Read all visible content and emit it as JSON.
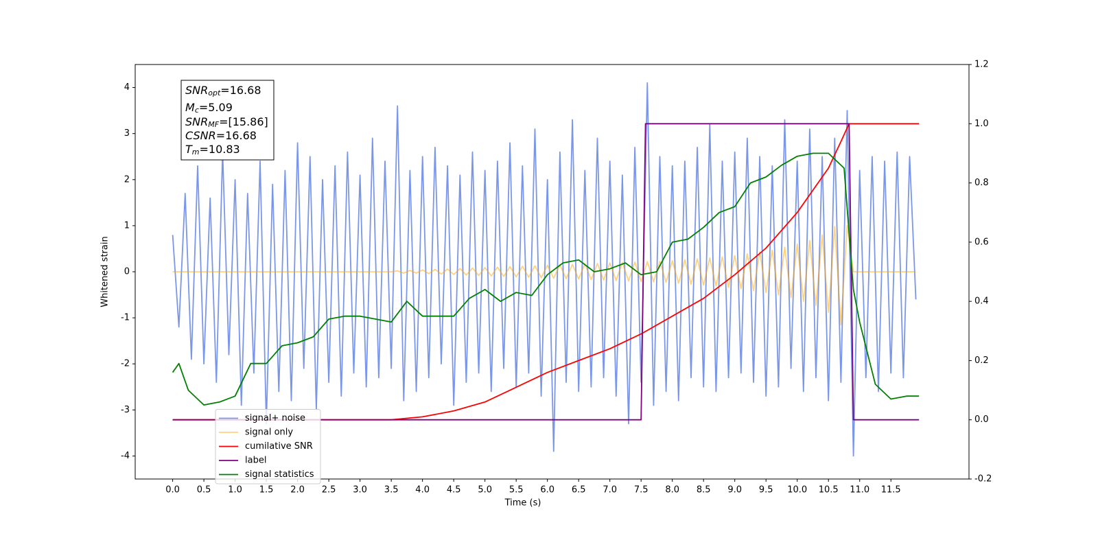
{
  "chart_data": {
    "type": "line",
    "ylabel": "Whitened strain",
    "xlabel": "Time (s)",
    "xlim": [
      -0.6,
      12.75
    ],
    "ylim": [
      -4.5,
      4.5
    ],
    "y2lim": [
      -0.2,
      1.2
    ],
    "xticks": [
      {
        "value": 0,
        "label": "0.0"
      },
      0.5,
      {
        "value": 1,
        "label": "1.0"
      },
      1.5,
      {
        "value": 2,
        "label": "2.0"
      },
      2.5,
      {
        "value": 3,
        "label": "3.0"
      },
      3.5,
      {
        "value": 4,
        "label": "4.0"
      },
      4.5,
      {
        "value": 5,
        "label": "5.0"
      },
      5.5,
      {
        "value": 6,
        "label": "6.0"
      },
      6.5,
      {
        "value": 7,
        "label": "7.0"
      },
      7.5,
      {
        "value": 8,
        "label": "8.0"
      },
      8.5,
      {
        "value": 9,
        "label": "9.0"
      },
      9.5,
      {
        "value": 10,
        "label": "10.0"
      },
      10.5,
      {
        "value": 11,
        "label": "11.0"
      },
      11.5
    ],
    "yticks": [
      -4,
      -3,
      -2,
      -1,
      0,
      1,
      2,
      3,
      4
    ],
    "y2ticks": [
      -0.2,
      {
        "value": 0,
        "label": "0.0"
      },
      0.2,
      0.4,
      0.6,
      0.8,
      {
        "value": 1,
        "label": "1.0"
      },
      1.2
    ],
    "legend": "lower left",
    "annotation": [
      {
        "base": "SNR",
        "sub": "opt",
        "rest": "=16.68"
      },
      {
        "base": "M",
        "sub": "c",
        "rest": "=5.09"
      },
      {
        "base": "SNR",
        "sub": "MF",
        "rest": "=[15.86]"
      },
      {
        "base": "CSNR",
        "sub": "",
        "rest": "=16.68"
      },
      {
        "base": "T",
        "sub": "m",
        "rest": "=10.83"
      }
    ],
    "series": [
      {
        "name": "signal+ noise",
        "color": "#4169e1",
        "alpha": 0.7,
        "step": 0.1,
        "values": [
          0.8,
          -1.2,
          1.7,
          -1.9,
          2.3,
          -2.0,
          1.6,
          -2.4,
          2.6,
          -1.8,
          2.0,
          -2.9,
          1.7,
          -2.2,
          2.4,
          -3.3,
          1.9,
          -2.6,
          2.2,
          -2.8,
          2.8,
          -2.1,
          2.5,
          -3.0,
          2.0,
          -2.4,
          2.3,
          -2.7,
          2.6,
          -2.2,
          2.1,
          -2.5,
          2.9,
          -2.3,
          2.4,
          -2.1,
          3.6,
          -2.8,
          2.2,
          -2.6,
          2.5,
          -2.3,
          2.7,
          -2.0,
          2.3,
          -2.9,
          2.1,
          -2.4,
          2.6,
          -2.2,
          2.2,
          -2.6,
          2.4,
          -2.1,
          2.8,
          -2.5,
          2.3,
          -2.2,
          3.1,
          -2.7,
          2.0,
          -3.9,
          2.6,
          -2.4,
          3.3,
          -2.6,
          2.2,
          -2.5,
          2.9,
          -2.3,
          2.4,
          -2.7,
          2.1,
          -3.3,
          2.7,
          -2.4,
          4.1,
          -2.9,
          2.5,
          -2.6,
          2.3,
          -2.8,
          2.4,
          -2.3,
          2.7,
          -2.5,
          3.2,
          -2.6,
          2.4,
          -2.3,
          2.6,
          -2.2,
          2.9,
          -2.4,
          2.5,
          -2.7,
          2.3,
          -2.5,
          3.3,
          -2.1,
          2.4,
          -2.6,
          3.1,
          -2.3,
          2.5,
          -2.8,
          2.9,
          -2.4,
          3.5,
          -4.0,
          2.2,
          -2.3,
          2.5,
          -2.6,
          2.4,
          -2.2,
          2.6,
          -2.3,
          2.5,
          -0.6
        ]
      },
      {
        "name": "signal only",
        "color": "#ffa500",
        "alpha": 0.5,
        "step": 0.1,
        "values": [
          0,
          0,
          0,
          0,
          0,
          0,
          0,
          0,
          0,
          0,
          0,
          0,
          0,
          0,
          0,
          0,
          0,
          0,
          0,
          0,
          0,
          0,
          0,
          0,
          0,
          0,
          0,
          0,
          0,
          0,
          0,
          0,
          0,
          0,
          0,
          0,
          0.02,
          -0.03,
          0.03,
          -0.03,
          0.04,
          -0.04,
          0.05,
          -0.05,
          0.06,
          -0.06,
          0.07,
          -0.07,
          0.08,
          -0.08,
          0.09,
          -0.09,
          0.1,
          -0.1,
          0.11,
          -0.11,
          0.12,
          -0.12,
          0.13,
          -0.13,
          0.14,
          -0.14,
          0.15,
          -0.15,
          0.16,
          -0.16,
          0.17,
          -0.17,
          0.18,
          -0.18,
          0.19,
          -0.19,
          0.2,
          -0.2,
          0.21,
          -0.21,
          0.22,
          -0.22,
          0.23,
          -0.23,
          0.24,
          -0.25,
          0.26,
          -0.27,
          0.28,
          -0.29,
          0.3,
          -0.31,
          0.32,
          -0.34,
          0.35,
          -0.37,
          0.39,
          -0.41,
          0.43,
          -0.45,
          0.47,
          -0.5,
          0.53,
          -0.56,
          0.6,
          -0.64,
          0.68,
          -0.73,
          0.8,
          -0.88,
          0.98,
          -1.15,
          1.0,
          0,
          0,
          0,
          0,
          0,
          0,
          0,
          0,
          0,
          0,
          0
        ]
      },
      {
        "name": "cumilative SNR",
        "color": "#ff0000",
        "alpha": 1,
        "axis": "y2",
        "x": [
          0,
          3.5,
          4.0,
          4.5,
          5.0,
          5.5,
          6.0,
          6.5,
          7.0,
          7.5,
          8.0,
          8.5,
          9.0,
          9.5,
          10.0,
          10.5,
          10.7,
          10.83,
          11.95
        ],
        "values": [
          0,
          0,
          0.01,
          0.03,
          0.06,
          0.11,
          0.16,
          0.2,
          0.24,
          0.29,
          0.35,
          0.41,
          0.49,
          0.58,
          0.7,
          0.85,
          0.94,
          1.0,
          1.0
        ]
      },
      {
        "name": "label",
        "color": "#800080",
        "alpha": 1,
        "axis": "y2",
        "x": [
          0,
          7.5,
          7.57,
          10.83,
          10.9,
          11.95
        ],
        "values": [
          0,
          0,
          1,
          1,
          0,
          0
        ]
      },
      {
        "name": "signal statistics",
        "color": "#008000",
        "alpha": 1,
        "axis": "y2",
        "x": [
          0,
          0.1,
          0.25,
          0.5,
          0.75,
          1.0,
          1.25,
          1.5,
          1.75,
          2.0,
          2.25,
          2.5,
          2.75,
          3.0,
          3.25,
          3.5,
          3.75,
          4.0,
          4.25,
          4.5,
          4.75,
          5.0,
          5.25,
          5.5,
          5.75,
          6.0,
          6.25,
          6.5,
          6.75,
          7.0,
          7.25,
          7.5,
          7.75,
          8.0,
          8.25,
          8.5,
          8.75,
          9.0,
          9.25,
          9.5,
          9.75,
          10.0,
          10.25,
          10.5,
          10.75,
          10.9,
          11.0,
          11.25,
          11.5,
          11.75,
          11.95
        ],
        "values": [
          0.16,
          0.19,
          0.1,
          0.05,
          0.06,
          0.08,
          0.19,
          0.19,
          0.25,
          0.26,
          0.28,
          0.34,
          0.35,
          0.35,
          0.34,
          0.33,
          0.4,
          0.35,
          0.35,
          0.35,
          0.41,
          0.44,
          0.4,
          0.43,
          0.42,
          0.49,
          0.53,
          0.54,
          0.5,
          0.51,
          0.53,
          0.49,
          0.5,
          0.6,
          0.61,
          0.65,
          0.7,
          0.72,
          0.8,
          0.82,
          0.86,
          0.89,
          0.9,
          0.9,
          0.85,
          0.44,
          0.33,
          0.12,
          0.07,
          0.08,
          0.08
        ]
      }
    ]
  }
}
